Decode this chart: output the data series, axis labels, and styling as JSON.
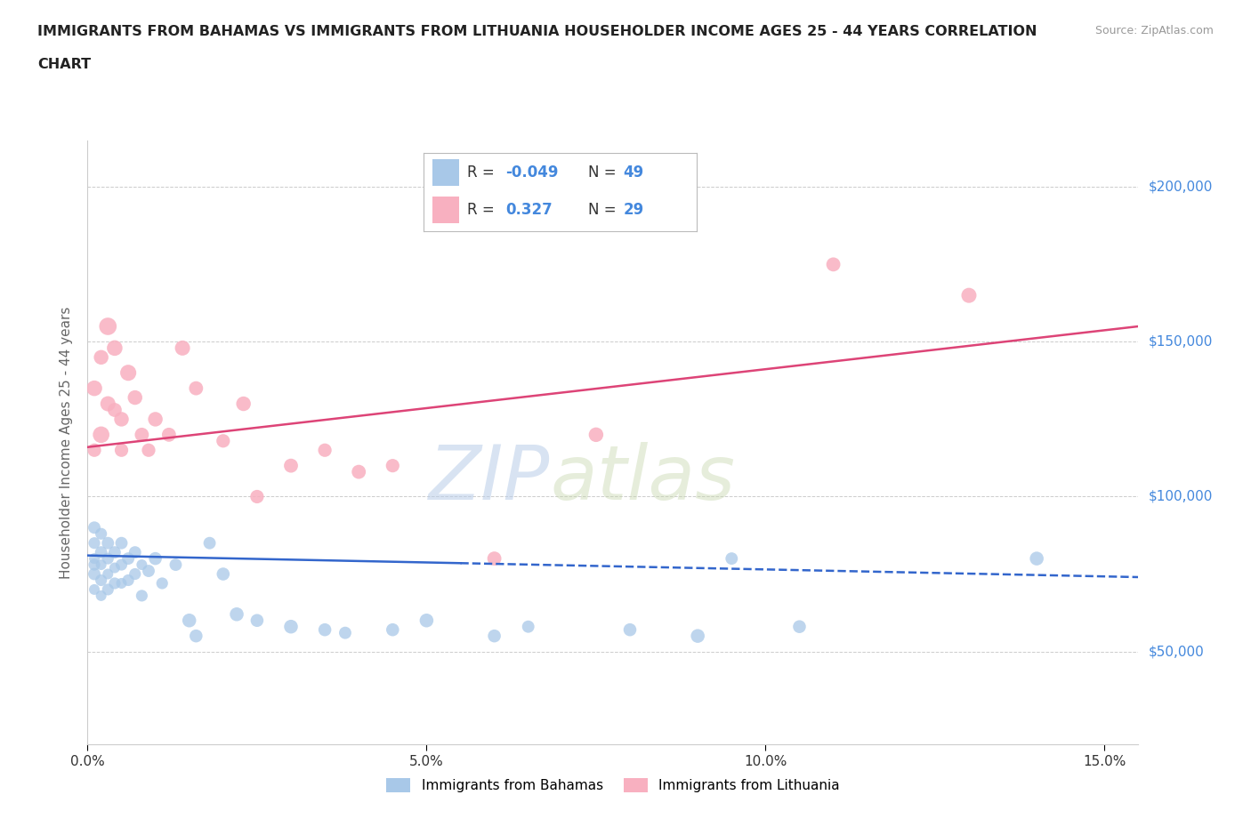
{
  "title_line1": "IMMIGRANTS FROM BAHAMAS VS IMMIGRANTS FROM LITHUANIA HOUSEHOLDER INCOME AGES 25 - 44 YEARS CORRELATION",
  "title_line2": "CHART",
  "source": "Source: ZipAtlas.com",
  "ylabel": "Householder Income Ages 25 - 44 years",
  "xlim": [
    0.0,
    0.155
  ],
  "ylim": [
    20000,
    215000
  ],
  "yticks": [
    50000,
    100000,
    150000,
    200000
  ],
  "ytick_labels": [
    "$50,000",
    "$100,000",
    "$150,000",
    "$200,000"
  ],
  "xticks": [
    0.0,
    0.05,
    0.1,
    0.15
  ],
  "xtick_labels": [
    "0.0%",
    "5.0%",
    "10.0%",
    "15.0%"
  ],
  "watermark_zip": "ZIP",
  "watermark_atlas": "atlas",
  "legend_r1": "-0.049",
  "legend_n1": "49",
  "legend_r2": "0.327",
  "legend_n2": "29",
  "bahamas_color": "#a8c8e8",
  "lithuania_color": "#f8b0c0",
  "trend_bahamas_color": "#3366cc",
  "trend_lithuania_color": "#dd4477",
  "ytick_color": "#4488dd",
  "background_color": "#ffffff",
  "bahamas_x": [
    0.001,
    0.001,
    0.001,
    0.001,
    0.001,
    0.001,
    0.002,
    0.002,
    0.002,
    0.002,
    0.002,
    0.003,
    0.003,
    0.003,
    0.003,
    0.004,
    0.004,
    0.004,
    0.005,
    0.005,
    0.005,
    0.006,
    0.006,
    0.007,
    0.007,
    0.008,
    0.008,
    0.009,
    0.01,
    0.011,
    0.013,
    0.015,
    0.016,
    0.018,
    0.02,
    0.022,
    0.025,
    0.03,
    0.035,
    0.038,
    0.045,
    0.05,
    0.06,
    0.065,
    0.08,
    0.09,
    0.095,
    0.105,
    0.14
  ],
  "bahamas_y": [
    90000,
    85000,
    80000,
    78000,
    75000,
    70000,
    88000,
    82000,
    78000,
    73000,
    68000,
    85000,
    80000,
    75000,
    70000,
    82000,
    77000,
    72000,
    85000,
    78000,
    72000,
    80000,
    73000,
    82000,
    75000,
    78000,
    68000,
    76000,
    80000,
    72000,
    78000,
    60000,
    55000,
    85000,
    75000,
    62000,
    60000,
    58000,
    57000,
    56000,
    57000,
    60000,
    55000,
    58000,
    57000,
    55000,
    80000,
    58000,
    80000
  ],
  "bahamas_sizes": [
    20,
    18,
    15,
    18,
    20,
    15,
    18,
    20,
    15,
    18,
    15,
    20,
    18,
    15,
    18,
    20,
    15,
    18,
    20,
    18,
    15,
    20,
    18,
    20,
    18,
    15,
    18,
    20,
    22,
    18,
    20,
    25,
    22,
    20,
    22,
    25,
    22,
    25,
    22,
    20,
    22,
    25,
    22,
    20,
    22,
    25,
    20,
    22,
    25
  ],
  "lithuania_x": [
    0.001,
    0.001,
    0.002,
    0.002,
    0.003,
    0.003,
    0.004,
    0.004,
    0.005,
    0.005,
    0.006,
    0.007,
    0.008,
    0.009,
    0.01,
    0.012,
    0.014,
    0.016,
    0.02,
    0.023,
    0.025,
    0.03,
    0.035,
    0.04,
    0.045,
    0.06,
    0.075,
    0.11,
    0.13
  ],
  "lithuania_y": [
    135000,
    115000,
    145000,
    120000,
    155000,
    130000,
    148000,
    128000,
    125000,
    115000,
    140000,
    132000,
    120000,
    115000,
    125000,
    120000,
    148000,
    135000,
    118000,
    130000,
    100000,
    110000,
    115000,
    108000,
    110000,
    80000,
    120000,
    175000,
    165000
  ],
  "lithuania_sizes": [
    80,
    60,
    70,
    90,
    100,
    75,
    80,
    65,
    70,
    60,
    85,
    70,
    65,
    60,
    70,
    65,
    75,
    65,
    60,
    70,
    60,
    65,
    60,
    65,
    60,
    65,
    70,
    65,
    75
  ],
  "trend_bahamas_y0": 81000,
  "trend_bahamas_y1": 74000,
  "trend_bahamas_solid_end": 0.055,
  "trend_lithuania_y0": 116000,
  "trend_lithuania_y1": 155000
}
